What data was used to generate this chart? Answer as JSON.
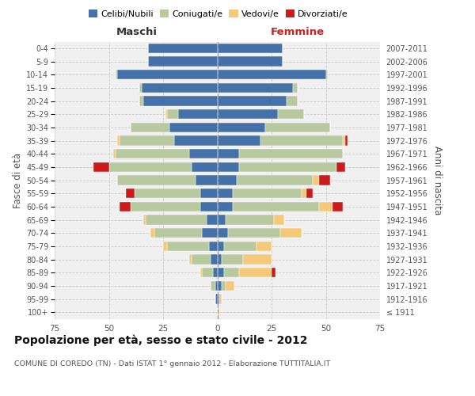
{
  "age_groups": [
    "100+",
    "95-99",
    "90-94",
    "85-89",
    "80-84",
    "75-79",
    "70-74",
    "65-69",
    "60-64",
    "55-59",
    "50-54",
    "45-49",
    "40-44",
    "35-39",
    "30-34",
    "25-29",
    "20-24",
    "15-19",
    "10-14",
    "5-9",
    "0-4"
  ],
  "birth_years": [
    "≤ 1911",
    "1912-1916",
    "1917-1921",
    "1922-1926",
    "1927-1931",
    "1932-1936",
    "1937-1941",
    "1942-1946",
    "1947-1951",
    "1952-1956",
    "1957-1961",
    "1962-1966",
    "1967-1971",
    "1972-1976",
    "1977-1981",
    "1982-1986",
    "1987-1991",
    "1992-1996",
    "1997-2001",
    "2002-2006",
    "2007-2011"
  ],
  "colors": {
    "celibe": "#4472a8",
    "coniugato": "#b8c9a0",
    "vedovo": "#f5c97a",
    "divorziato": "#cc1b1b"
  },
  "maschi": {
    "celibe": [
      0,
      1,
      1,
      2,
      3,
      4,
      7,
      5,
      8,
      8,
      10,
      12,
      13,
      20,
      22,
      18,
      34,
      35,
      46,
      32,
      32
    ],
    "coniugato": [
      0,
      0,
      2,
      5,
      9,
      19,
      22,
      28,
      32,
      30,
      36,
      38,
      34,
      25,
      18,
      5,
      2,
      1,
      1,
      0,
      0
    ],
    "vedovo": [
      0,
      0,
      0,
      1,
      1,
      2,
      2,
      1,
      0,
      0,
      0,
      0,
      1,
      1,
      0,
      1,
      0,
      0,
      0,
      0,
      0
    ],
    "divorziato": [
      0,
      0,
      0,
      0,
      0,
      0,
      0,
      0,
      5,
      4,
      0,
      7,
      0,
      0,
      0,
      0,
      0,
      0,
      0,
      0,
      0
    ]
  },
  "femmine": {
    "celibe": [
      0,
      1,
      2,
      3,
      2,
      3,
      5,
      4,
      7,
      7,
      9,
      10,
      10,
      20,
      22,
      28,
      32,
      35,
      50,
      30,
      30
    ],
    "coniugato": [
      0,
      0,
      2,
      7,
      10,
      15,
      24,
      22,
      40,
      32,
      35,
      45,
      48,
      38,
      30,
      12,
      5,
      2,
      1,
      0,
      0
    ],
    "vedovo": [
      1,
      1,
      4,
      15,
      13,
      7,
      10,
      5,
      6,
      2,
      3,
      0,
      0,
      1,
      0,
      0,
      0,
      0,
      0,
      0,
      0
    ],
    "divorziato": [
      0,
      0,
      0,
      2,
      0,
      0,
      0,
      0,
      5,
      3,
      5,
      4,
      0,
      1,
      0,
      0,
      0,
      0,
      0,
      0,
      0
    ]
  },
  "xlim": 75,
  "title": "Popolazione per età, sesso e stato civile - 2012",
  "subtitle": "COMUNE DI COREDO (TN) - Dati ISTAT 1° gennaio 2012 - Elaborazione TUTTITALIA.IT",
  "ylabel_left": "Fasce di età",
  "ylabel_right": "Anni di nascita",
  "xlabel_left": "Maschi",
  "xlabel_right": "Femmine",
  "bg_color": "#f0f0f0",
  "grid_color": "#cccccc"
}
